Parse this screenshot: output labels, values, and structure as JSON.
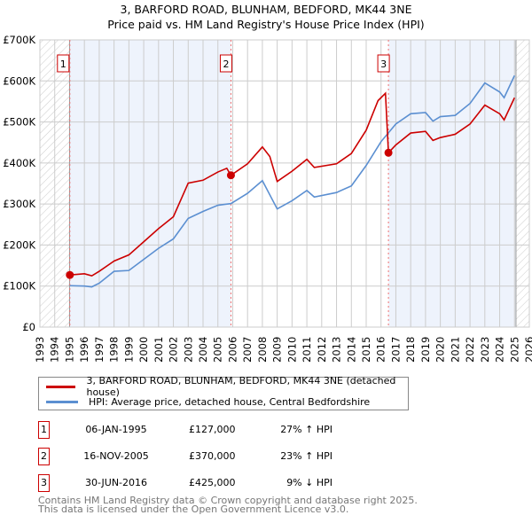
{
  "title": "3, BARFORD ROAD, BLUNHAM, BEDFORD, MK44 3NE",
  "subtitle": "Price paid vs. HM Land Registry's House Price Index (HPI)",
  "colors": {
    "red": "#cc0000",
    "blue": "#5b8fd1",
    "band": "#eef3fc",
    "grid": "#cccccc"
  },
  "chart_data": {
    "type": "line",
    "title": "3, BARFORD ROAD, BLUNHAM, BEDFORD, MK44 3NE",
    "xlim": [
      1993,
      2026
    ],
    "ylim": [
      0,
      700000
    ],
    "y_ticks": [
      {
        "v": 0,
        "label": "£0"
      },
      {
        "v": 100000,
        "label": "£100K"
      },
      {
        "v": 200000,
        "label": "£200K"
      },
      {
        "v": 300000,
        "label": "£300K"
      },
      {
        "v": 400000,
        "label": "£400K"
      },
      {
        "v": 500000,
        "label": "£500K"
      },
      {
        "v": 600000,
        "label": "£600K"
      },
      {
        "v": 700000,
        "label": "£700K"
      }
    ],
    "x_ticks": [
      "1993",
      "1994",
      "1995",
      "1996",
      "1997",
      "1998",
      "1999",
      "2000",
      "2001",
      "2002",
      "2003",
      "2004",
      "2005",
      "2006",
      "2007",
      "2008",
      "2009",
      "2010",
      "2011",
      "2012",
      "2013",
      "2014",
      "2015",
      "2016",
      "2017",
      "2018",
      "2019",
      "2020",
      "2021",
      "2022",
      "2023",
      "2024",
      "2025",
      "2026"
    ],
    "grid": true,
    "series": [
      {
        "name": "3, BARFORD ROAD, BLUNHAM, BEDFORD, MK44 3NE (detached house)",
        "color": "#cc0000",
        "x": [
          1995.02,
          1996,
          1996.5,
          1997,
          1998,
          1999,
          2000,
          2001,
          2002,
          2003,
          2004,
          2005,
          2005.6,
          2005.88,
          2007,
          2008,
          2008.5,
          2009,
          2010,
          2011,
          2011.5,
          2013,
          2014,
          2015,
          2015.8,
          2016.3,
          2016.5,
          2017,
          2018,
          2019,
          2019.5,
          2020,
          2021,
          2022,
          2023,
          2024,
          2024.3,
          2025
        ],
        "y": [
          127000,
          130000,
          125000,
          136000,
          161000,
          176000,
          208000,
          240000,
          269000,
          351000,
          358000,
          378000,
          387000,
          370000,
          398000,
          439000,
          416000,
          355000,
          380000,
          409000,
          389000,
          398000,
          423000,
          480000,
          552000,
          570000,
          425000,
          444000,
          473000,
          477000,
          455000,
          462000,
          470000,
          495000,
          541000,
          520000,
          505000,
          559000
        ]
      },
      {
        "name": "HPI: Average price, detached house, Central Bedfordshire",
        "color": "#5b8fd1",
        "x": [
          1995.02,
          1996,
          1996.5,
          1997,
          1998,
          1999,
          2000,
          2001,
          2002,
          2003,
          2004,
          2005,
          2005.88,
          2007,
          2008,
          2009,
          2010,
          2011,
          2011.5,
          2013,
          2014,
          2015,
          2016,
          2017,
          2018,
          2019,
          2019.5,
          2020,
          2021,
          2022,
          2023,
          2024,
          2024.3,
          2025
        ],
        "y": [
          101000,
          100000,
          98000,
          107000,
          136000,
          138000,
          165000,
          192000,
          215000,
          265000,
          282000,
          297000,
          301000,
          326000,
          357000,
          288000,
          308000,
          333000,
          317000,
          328000,
          344000,
          394000,
          452000,
          495000,
          520000,
          523000,
          502000,
          513000,
          516000,
          545000,
          595000,
          573000,
          559000,
          613000
        ]
      }
    ],
    "sales": [
      {
        "n": "1",
        "x": 1995.02,
        "y": 127000,
        "date": "06-JAN-1995",
        "price": "£127,000",
        "hpi": "27% ↑ HPI"
      },
      {
        "n": "2",
        "x": 2005.88,
        "y": 370000,
        "date": "16-NOV-2005",
        "price": "£370,000",
        "hpi": "23% ↑ HPI"
      },
      {
        "n": "3",
        "x": 2016.5,
        "y": 425000,
        "date": "30-JUN-2016",
        "price": "£425,000",
        "hpi": "9% ↓ HPI"
      }
    ],
    "data_range": [
      1995,
      2025.1
    ],
    "legend": "below"
  },
  "footer": [
    "Contains HM Land Registry data © Crown copyright and database right 2025.",
    "This data is licensed under the Open Government Licence v3.0."
  ]
}
